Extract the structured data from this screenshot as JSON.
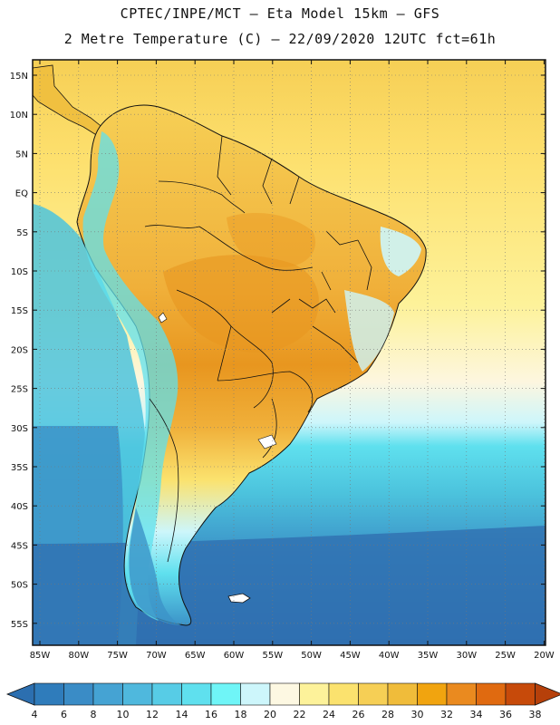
{
  "header": {
    "title_line1": "CPTEC/INPE/MCT –  Eta Model 15km – GFS",
    "title_line2": "2 Metre Temperature (C) – 22/09/2020 12UTC fct=61h"
  },
  "axes": {
    "lat_labels": [
      "15N",
      "10N",
      "5N",
      "EQ",
      "5S",
      "10S",
      "15S",
      "20S",
      "25S",
      "30S",
      "35S",
      "40S",
      "45S",
      "50S",
      "55S"
    ],
    "lon_labels": [
      "85W",
      "80W",
      "75W",
      "70W",
      "65W",
      "60W",
      "55W",
      "50W",
      "45W",
      "40W",
      "35W",
      "30W",
      "25W",
      "20W"
    ]
  },
  "colorbar": {
    "labels": [
      "4",
      "6",
      "8",
      "10",
      "12",
      "14",
      "16",
      "18",
      "20",
      "22",
      "24",
      "26",
      "28",
      "30",
      "32",
      "34",
      "36",
      "38"
    ],
    "colors": [
      "#2c6fb0",
      "#2f7cbb",
      "#3a8cc6",
      "#45a3d3",
      "#4fb8dd",
      "#57cce6",
      "#5fe0ee",
      "#6ff5f7",
      "#cdf6fb",
      "#fdf8e2",
      "#fdf29a",
      "#fbe26e",
      "#f6cf55",
      "#f0bc3a",
      "#f1a40f",
      "#ea8a1f",
      "#e06a10",
      "#c74a0a",
      "#b6400a"
    ]
  },
  "map_colors": {
    "ocean_deep": "#2f6fb0",
    "ocean_mid": "#3c93c8",
    "ocean_light": "#4cc3dd",
    "ocean_cyan": "#5fe0ee",
    "ocean_pale": "#cdf6fb",
    "ocean_cream": "#fdf6df",
    "warm_yellow": "#fde06e",
    "warm_gold": "#f6cf55",
    "land_orange": "#f0b03a",
    "hot_orange": "#e8961f",
    "border": "#111111"
  }
}
